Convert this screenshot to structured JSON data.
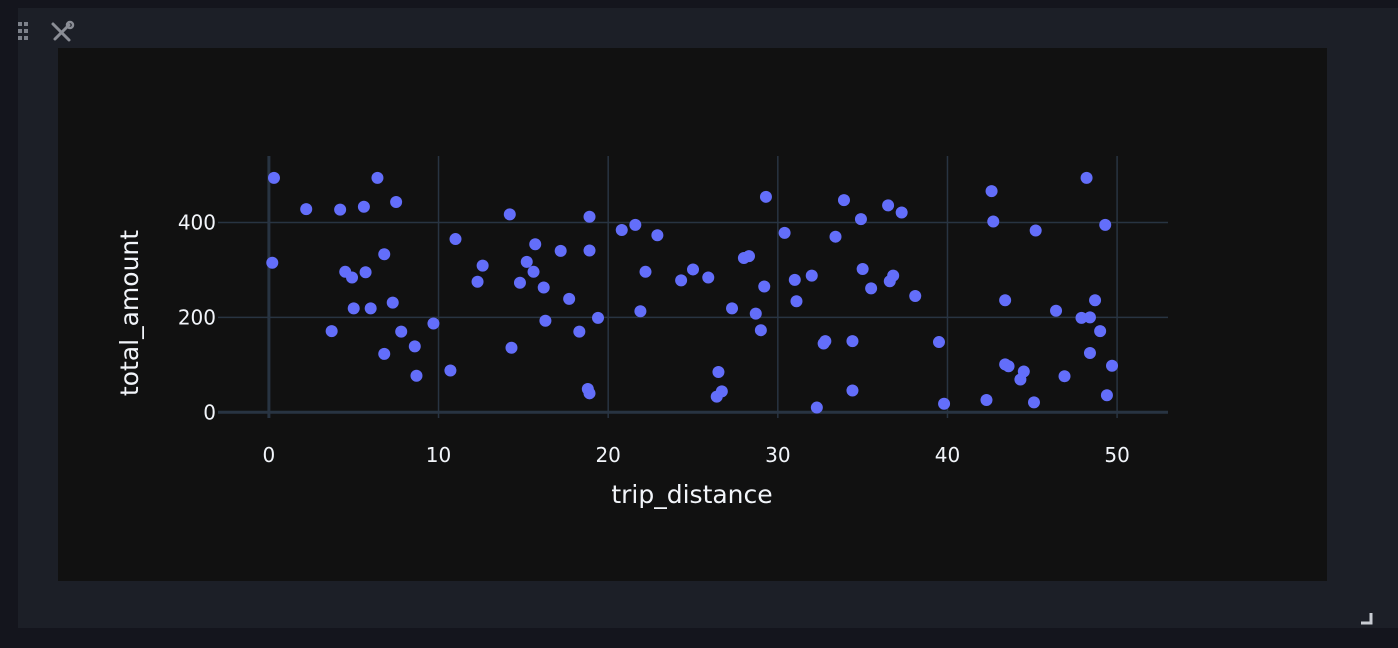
{
  "widget": {
    "drag_icon": "drag-grid-icon",
    "settings_icon": "wrench-screwdriver-icon",
    "resize_icon": "resize-corner-icon"
  },
  "chart_data": {
    "type": "scatter",
    "title": "",
    "xlabel": "trip_distance",
    "ylabel": "total_amount",
    "xlim": [
      -3,
      53
    ],
    "ylim": [
      -12,
      540
    ],
    "x_ticks": [
      0,
      10,
      20,
      30,
      40,
      50
    ],
    "y_ticks": [
      0,
      200,
      400
    ],
    "grid": true,
    "marker_color": "#636efa",
    "background_color": "#111111",
    "grid_color": "#283442",
    "points": [
      {
        "x": 0.3,
        "y": 494
      },
      {
        "x": 0.2,
        "y": 315
      },
      {
        "x": 2.2,
        "y": 428
      },
      {
        "x": 3.7,
        "y": 171
      },
      {
        "x": 4.2,
        "y": 427
      },
      {
        "x": 4.5,
        "y": 296
      },
      {
        "x": 4.9,
        "y": 284
      },
      {
        "x": 5.0,
        "y": 219
      },
      {
        "x": 5.6,
        "y": 433
      },
      {
        "x": 5.7,
        "y": 295
      },
      {
        "x": 6.0,
        "y": 219
      },
      {
        "x": 6.4,
        "y": 494
      },
      {
        "x": 6.8,
        "y": 333
      },
      {
        "x": 6.8,
        "y": 123
      },
      {
        "x": 7.3,
        "y": 231
      },
      {
        "x": 7.5,
        "y": 443
      },
      {
        "x": 7.8,
        "y": 170
      },
      {
        "x": 8.6,
        "y": 139
      },
      {
        "x": 8.7,
        "y": 77
      },
      {
        "x": 9.7,
        "y": 187
      },
      {
        "x": 10.7,
        "y": 88
      },
      {
        "x": 11.0,
        "y": 365
      },
      {
        "x": 12.3,
        "y": 275
      },
      {
        "x": 12.6,
        "y": 309
      },
      {
        "x": 14.2,
        "y": 417
      },
      {
        "x": 14.3,
        "y": 136
      },
      {
        "x": 14.8,
        "y": 273
      },
      {
        "x": 15.2,
        "y": 317
      },
      {
        "x": 15.6,
        "y": 296
      },
      {
        "x": 15.7,
        "y": 354
      },
      {
        "x": 16.2,
        "y": 263
      },
      {
        "x": 16.3,
        "y": 193
      },
      {
        "x": 17.2,
        "y": 340
      },
      {
        "x": 17.7,
        "y": 239
      },
      {
        "x": 18.3,
        "y": 170
      },
      {
        "x": 18.8,
        "y": 49
      },
      {
        "x": 18.9,
        "y": 40
      },
      {
        "x": 18.9,
        "y": 412
      },
      {
        "x": 18.9,
        "y": 341
      },
      {
        "x": 19.4,
        "y": 199
      },
      {
        "x": 20.8,
        "y": 384
      },
      {
        "x": 21.6,
        "y": 395
      },
      {
        "x": 21.9,
        "y": 213
      },
      {
        "x": 22.2,
        "y": 296
      },
      {
        "x": 22.9,
        "y": 373
      },
      {
        "x": 24.3,
        "y": 278
      },
      {
        "x": 25.0,
        "y": 301
      },
      {
        "x": 25.9,
        "y": 284
      },
      {
        "x": 26.4,
        "y": 33
      },
      {
        "x": 26.5,
        "y": 85
      },
      {
        "x": 26.7,
        "y": 44
      },
      {
        "x": 27.3,
        "y": 219
      },
      {
        "x": 28.0,
        "y": 325
      },
      {
        "x": 28.3,
        "y": 329
      },
      {
        "x": 28.7,
        "y": 208
      },
      {
        "x": 29.0,
        "y": 173
      },
      {
        "x": 29.2,
        "y": 265
      },
      {
        "x": 29.3,
        "y": 454
      },
      {
        "x": 30.4,
        "y": 378
      },
      {
        "x": 31.0,
        "y": 279
      },
      {
        "x": 31.1,
        "y": 234
      },
      {
        "x": 32.0,
        "y": 288
      },
      {
        "x": 32.3,
        "y": 10
      },
      {
        "x": 32.7,
        "y": 145
      },
      {
        "x": 32.8,
        "y": 150
      },
      {
        "x": 33.4,
        "y": 370
      },
      {
        "x": 33.9,
        "y": 447
      },
      {
        "x": 34.4,
        "y": 150
      },
      {
        "x": 34.4,
        "y": 46
      },
      {
        "x": 34.9,
        "y": 407
      },
      {
        "x": 35.0,
        "y": 302
      },
      {
        "x": 35.5,
        "y": 261
      },
      {
        "x": 36.5,
        "y": 436
      },
      {
        "x": 36.6,
        "y": 276
      },
      {
        "x": 36.8,
        "y": 288
      },
      {
        "x": 37.3,
        "y": 421
      },
      {
        "x": 38.1,
        "y": 245
      },
      {
        "x": 39.5,
        "y": 148
      },
      {
        "x": 39.8,
        "y": 18
      },
      {
        "x": 42.3,
        "y": 26
      },
      {
        "x": 42.6,
        "y": 466
      },
      {
        "x": 42.7,
        "y": 402
      },
      {
        "x": 43.4,
        "y": 236
      },
      {
        "x": 43.4,
        "y": 101
      },
      {
        "x": 43.6,
        "y": 97
      },
      {
        "x": 44.3,
        "y": 69
      },
      {
        "x": 44.5,
        "y": 86
      },
      {
        "x": 45.1,
        "y": 21
      },
      {
        "x": 45.2,
        "y": 383
      },
      {
        "x": 46.4,
        "y": 214
      },
      {
        "x": 46.9,
        "y": 76
      },
      {
        "x": 47.9,
        "y": 199
      },
      {
        "x": 48.2,
        "y": 494
      },
      {
        "x": 48.4,
        "y": 200
      },
      {
        "x": 48.4,
        "y": 125
      },
      {
        "x": 48.7,
        "y": 236
      },
      {
        "x": 49.0,
        "y": 171
      },
      {
        "x": 49.3,
        "y": 395
      },
      {
        "x": 49.4,
        "y": 36
      },
      {
        "x": 49.7,
        "y": 98
      }
    ]
  }
}
